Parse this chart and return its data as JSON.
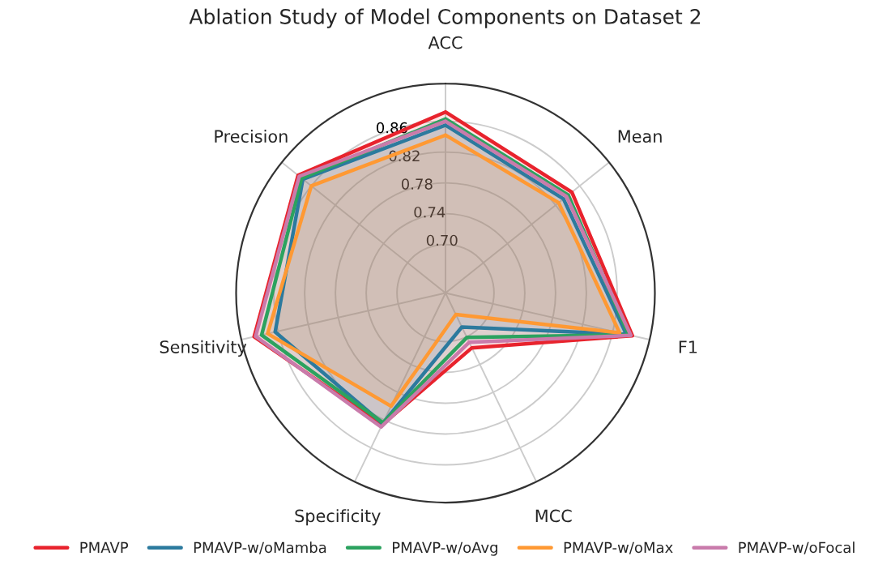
{
  "chart_data": {
    "type": "radar",
    "title": "Ablation Study of Model Components on Dataset 2",
    "categories": [
      "ACC",
      "Mean",
      "F1",
      "MCC",
      "Specificity",
      "Sensitivity",
      "Precision"
    ],
    "ylim": [
      0.637,
      0.909
    ],
    "yticks": [
      {
        "value": 0.7,
        "label": "0.70"
      },
      0.74,
      0.78,
      0.82,
      0.86
    ],
    "grid": true,
    "legend": "bottom",
    "series": [
      {
        "name": "PMAVP",
        "color": "#e8232d",
        "values": [
          0.872,
          0.847,
          0.886,
          0.716,
          0.827,
          0.892,
          0.882
        ]
      },
      {
        "name": "PMAVP-w/oMamba",
        "color": "#2c7a9e",
        "values": [
          0.855,
          0.833,
          0.878,
          0.686,
          0.825,
          0.864,
          0.874
        ]
      },
      {
        "name": "PMAVP-w/oAvg",
        "color": "#2ca25f",
        "values": [
          0.863,
          0.841,
          0.881,
          0.701,
          0.824,
          0.882,
          0.876
        ]
      },
      {
        "name": "PMAVP-w/oMax",
        "color": "#ff9933",
        "values": [
          0.842,
          0.825,
          0.869,
          0.668,
          0.8,
          0.874,
          0.86
        ]
      },
      {
        "name": "PMAVP-w/oFocal",
        "color": "#c97bab",
        "values": [
          0.86,
          0.838,
          0.884,
          0.708,
          0.83,
          0.89,
          0.88
        ]
      }
    ]
  }
}
